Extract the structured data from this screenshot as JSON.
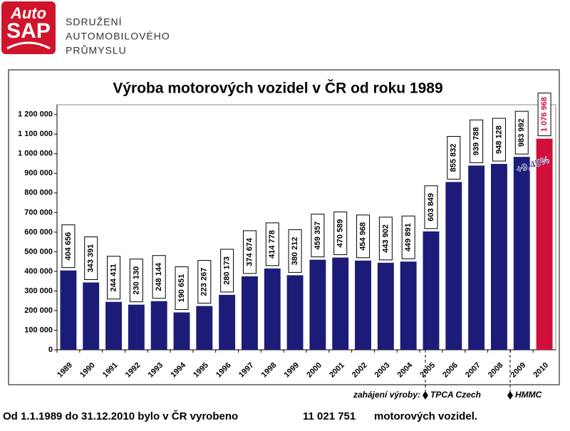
{
  "logo": {
    "top": "Auto",
    "bottom": "SAP"
  },
  "header": {
    "lines": [
      "SDRUŽENÍ",
      "AUTOMOBILOVÉHO",
      "PRŮMYSLU"
    ]
  },
  "chart_data": {
    "type": "bar",
    "title": "Výroba motorových vozidel v ČR od roku 1989",
    "categories": [
      "1989",
      "1990",
      "1991",
      "1992",
      "1993",
      "1994",
      "1995",
      "1996",
      "1997",
      "1998",
      "1999",
      "2000",
      "2001",
      "2002",
      "2003",
      "2004",
      "2005",
      "2006",
      "2007",
      "2008",
      "2009",
      "2010"
    ],
    "values": [
      404656,
      343391,
      244411,
      230130,
      248144,
      190651,
      223267,
      280173,
      374674,
      414778,
      380212,
      459357,
      470589,
      454968,
      443902,
      449891,
      603849,
      855832,
      939788,
      948128,
      983992,
      1076968
    ],
    "value_labels": [
      "404 656",
      "343 391",
      "244 411",
      "230 130",
      "248 144",
      "190 651",
      "223 267",
      "280 173",
      "374 674",
      "414 778",
      "380 212",
      "459 357",
      "470 589",
      "454 968",
      "443 902",
      "449 891",
      "603 849",
      "855 832",
      "939 788",
      "948 128",
      "983 992",
      "1 076 968"
    ],
    "colors": [
      "#1c1c78",
      "#1c1c78",
      "#1c1c78",
      "#1c1c78",
      "#1c1c78",
      "#1c1c78",
      "#1c1c78",
      "#1c1c78",
      "#1c1c78",
      "#1c1c78",
      "#1c1c78",
      "#1c1c78",
      "#1c1c78",
      "#1c1c78",
      "#1c1c78",
      "#1c1c78",
      "#1c1c78",
      "#1c1c78",
      "#1c1c78",
      "#1c1c78",
      "#1c1c78",
      "#d0103a"
    ],
    "ylim": [
      0,
      1250000
    ],
    "yticks": [
      0,
      {
        "value": 100000,
        "label": "100 000"
      },
      {
        "value": 200000,
        "label": "200 000"
      },
      {
        "value": 300000,
        "label": "300 000"
      },
      {
        "value": 400000,
        "label": "400 000"
      },
      {
        "value": 500000,
        "label": "500 000"
      },
      {
        "value": 600000,
        "label": "600 000"
      },
      {
        "value": 700000,
        "label": "700 000"
      },
      {
        "value": 800000,
        "label": "800 000"
      },
      {
        "value": 900000,
        "label": "900 000"
      },
      {
        "value": 1000000,
        "label": "1 000 000"
      },
      {
        "value": 1100000,
        "label": "1 100 000"
      },
      {
        "value": 1200000,
        "label": "1 200 000"
      }
    ],
    "grid": false,
    "annotation": "+9,45%",
    "start_label": "zahájení výroby:",
    "markers": [
      "TPCA Czech",
      "HMMC"
    ]
  },
  "footer": {
    "text": "Od  1.1.1989 do 31.12.2010 bylo v ČR vyrobeno",
    "total": "11 021 751",
    "unit": "motorových vozidel."
  }
}
